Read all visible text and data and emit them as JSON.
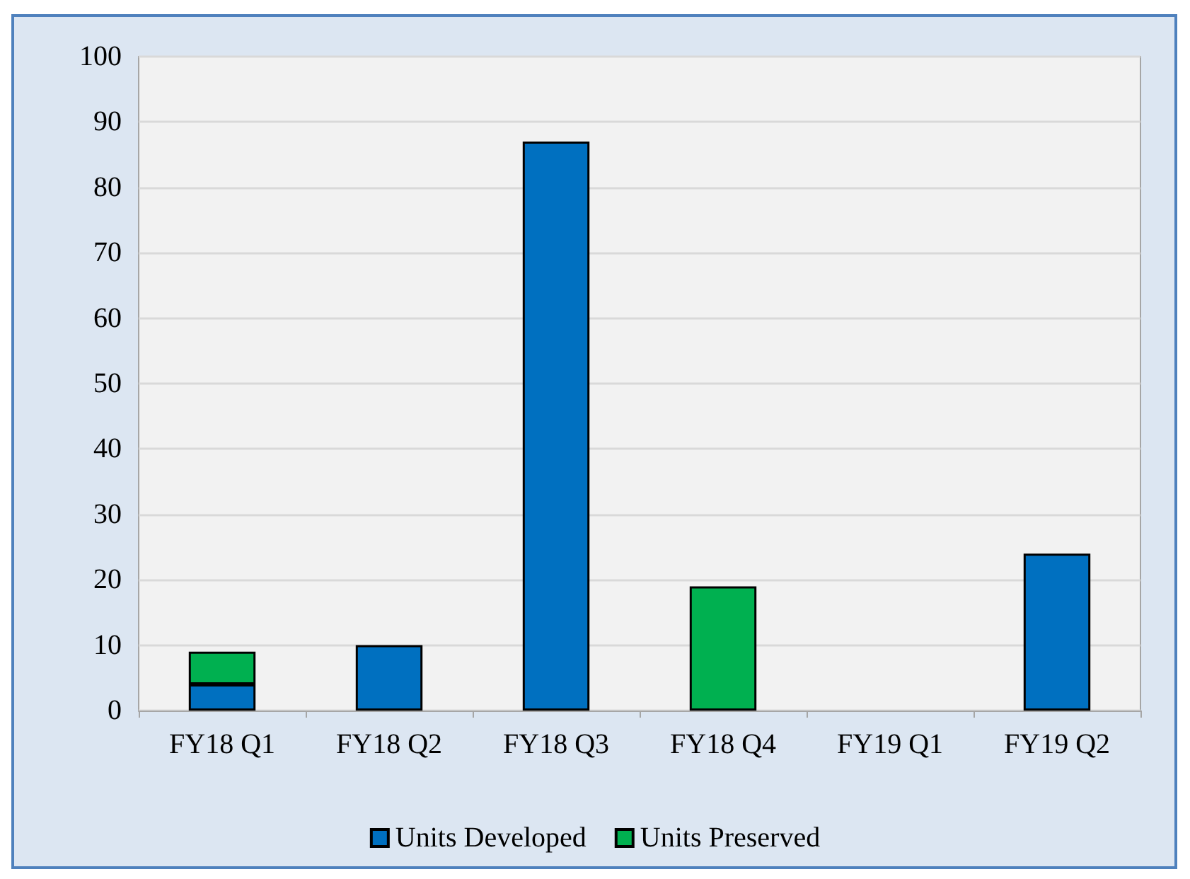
{
  "chart_data": {
    "type": "bar",
    "stacked": true,
    "categories": [
      "FY18 Q1",
      "FY18 Q2",
      "FY18 Q3",
      "FY18 Q4",
      "FY19 Q1",
      "FY19 Q2"
    ],
    "series": [
      {
        "name": "Units Developed",
        "color": "#0070c0",
        "values": [
          4,
          10,
          87,
          null,
          null,
          24
        ]
      },
      {
        "name": "Units Preserved",
        "color": "#00b050",
        "values": [
          5,
          null,
          null,
          19,
          null,
          null
        ]
      }
    ],
    "ylim": [
      0,
      100
    ],
    "yticks": [
      0,
      10,
      20,
      30,
      40,
      50,
      60,
      70,
      80,
      90,
      100
    ],
    "grid": "y",
    "legend": "bottom"
  }
}
